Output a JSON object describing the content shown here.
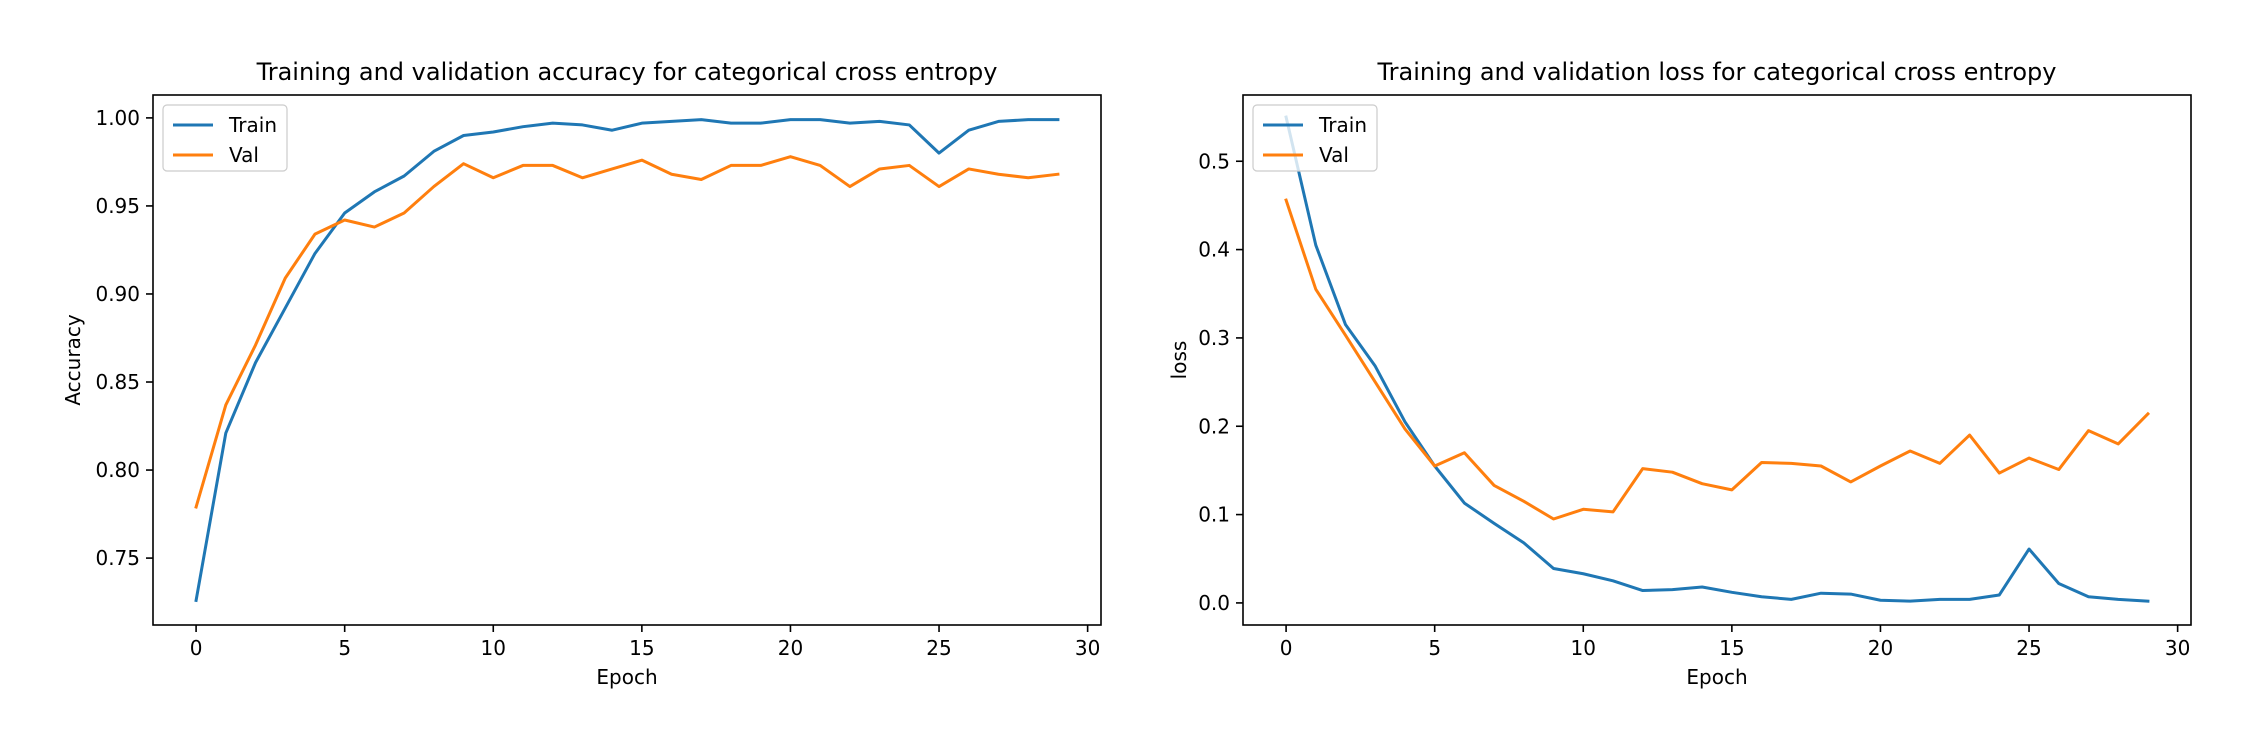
{
  "chart_data": [
    {
      "type": "line",
      "title": "Training and validation accuracy for categorical cross entropy",
      "xlabel": "Epoch",
      "ylabel": "Accuracy",
      "xlim": [
        -1.45,
        30.45
      ],
      "ylim": [
        0.712,
        1.013
      ],
      "xticks": [
        0,
        5,
        10,
        15,
        20,
        25,
        30
      ],
      "xtick_labels": [
        "0",
        "5",
        "10",
        "15",
        "20",
        "25",
        "30"
      ],
      "yticks": [
        0.75,
        0.8,
        0.85,
        0.9,
        0.95,
        1.0
      ],
      "ytick_labels": [
        "0.75",
        "0.80",
        "0.85",
        "0.90",
        "0.95",
        "1.00"
      ],
      "legend_position": "top-left",
      "x": [
        0,
        1,
        2,
        3,
        4,
        5,
        6,
        7,
        8,
        9,
        10,
        11,
        12,
        13,
        14,
        15,
        16,
        17,
        18,
        19,
        20,
        21,
        22,
        23,
        24,
        25,
        26,
        27,
        28,
        29
      ],
      "series": [
        {
          "name": "Train",
          "color": "#1f77b4",
          "values": [
            0.726,
            0.821,
            0.861,
            0.892,
            0.923,
            0.946,
            0.958,
            0.967,
            0.981,
            0.99,
            0.992,
            0.995,
            0.997,
            0.996,
            0.993,
            0.997,
            0.998,
            0.999,
            0.997,
            0.997,
            0.999,
            0.999,
            0.997,
            0.998,
            0.996,
            0.98,
            0.993,
            0.998,
            0.999,
            0.999
          ]
        },
        {
          "name": "Val",
          "color": "#ff7f0e",
          "values": [
            0.779,
            0.837,
            0.871,
            0.909,
            0.934,
            0.942,
            0.938,
            0.946,
            0.961,
            0.974,
            0.966,
            0.973,
            0.973,
            0.966,
            0.971,
            0.976,
            0.968,
            0.965,
            0.973,
            0.973,
            0.978,
            0.973,
            0.961,
            0.971,
            0.973,
            0.961,
            0.971,
            0.968,
            0.966,
            0.968
          ]
        }
      ]
    },
    {
      "type": "line",
      "title": "Training and validation loss for categorical cross entropy",
      "xlabel": "Epoch",
      "ylabel": "loss",
      "xlim": [
        -1.45,
        30.45
      ],
      "ylim": [
        -0.025,
        0.575
      ],
      "xticks": [
        0,
        5,
        10,
        15,
        20,
        25,
        30
      ],
      "xtick_labels": [
        "0",
        "5",
        "10",
        "15",
        "20",
        "25",
        "30"
      ],
      "yticks": [
        0.0,
        0.1,
        0.2,
        0.3,
        0.4,
        0.5
      ],
      "ytick_labels": [
        "0.0",
        "0.1",
        "0.2",
        "0.3",
        "0.4",
        "0.5"
      ],
      "legend_position": "top-left",
      "x": [
        0,
        1,
        2,
        3,
        4,
        5,
        6,
        7,
        8,
        9,
        10,
        11,
        12,
        13,
        14,
        15,
        16,
        17,
        18,
        19,
        20,
        21,
        22,
        23,
        24,
        25,
        26,
        27,
        28,
        29
      ],
      "series": [
        {
          "name": "Train",
          "color": "#1f77b4",
          "values": [
            0.55,
            0.405,
            0.315,
            0.268,
            0.205,
            0.155,
            0.113,
            0.09,
            0.068,
            0.039,
            0.033,
            0.025,
            0.014,
            0.015,
            0.018,
            0.012,
            0.007,
            0.004,
            0.011,
            0.01,
            0.003,
            0.002,
            0.004,
            0.004,
            0.009,
            0.061,
            0.022,
            0.007,
            0.004,
            0.002
          ]
        },
        {
          "name": "Val",
          "color": "#ff7f0e",
          "values": [
            0.456,
            0.355,
            0.303,
            0.25,
            0.197,
            0.155,
            0.17,
            0.133,
            0.115,
            0.095,
            0.106,
            0.103,
            0.152,
            0.148,
            0.135,
            0.128,
            0.159,
            0.158,
            0.155,
            0.137,
            0.155,
            0.172,
            0.158,
            0.19,
            0.147,
            0.164,
            0.151,
            0.195,
            0.18,
            0.214
          ]
        }
      ]
    }
  ]
}
